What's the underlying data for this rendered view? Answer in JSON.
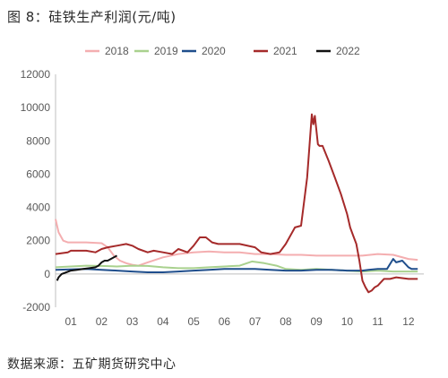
{
  "title": "图 8：硅铁生产利润(元/吨)",
  "source": "数据来源：五矿期货研究中心",
  "chart_data": {
    "type": "line",
    "title": "图 8：硅铁生产利润(元/吨)",
    "ylim": [
      -2000,
      12000
    ],
    "yticks": [
      -2000,
      0,
      2000,
      4000,
      6000,
      8000,
      10000,
      12000
    ],
    "ytick_labels": [
      "-2000",
      "0",
      "2000",
      "4000",
      "6000",
      "8000",
      "10000",
      "12000"
    ],
    "xlim": [
      0.5,
      12.5
    ],
    "xticks": [
      1,
      2,
      3,
      4,
      5,
      6,
      7,
      8,
      9,
      10,
      11,
      12
    ],
    "xtick_labels": [
      "01",
      "02",
      "03",
      "04",
      "05",
      "06",
      "07",
      "08",
      "09",
      "10",
      "11",
      "12"
    ],
    "legend_position": "top",
    "grid": false,
    "series": [
      {
        "name": "2018",
        "color": "#f4aeb0",
        "x": [
          0.5,
          0.6,
          0.75,
          0.9,
          1.5,
          2.0,
          2.2,
          2.4,
          2.6,
          2.8,
          3.0,
          3.2,
          3.5,
          4.0,
          4.5,
          5.0,
          5.5,
          6.0,
          6.5,
          7.0,
          7.5,
          8.0,
          8.5,
          9.0,
          9.5,
          10.0,
          10.5,
          11.0,
          11.5,
          12.0,
          12.3
        ],
        "y": [
          3300,
          2500,
          2000,
          1900,
          1900,
          1850,
          1600,
          1100,
          800,
          650,
          550,
          500,
          700,
          1000,
          1200,
          1300,
          1350,
          1300,
          1300,
          1200,
          1200,
          1150,
          1150,
          1100,
          1100,
          1100,
          1100,
          1200,
          1150,
          900,
          850
        ]
      },
      {
        "name": "2019",
        "color": "#a9d18e",
        "x": [
          0.5,
          1.0,
          1.5,
          2.0,
          2.5,
          3.0,
          3.5,
          4.0,
          4.5,
          5.0,
          5.5,
          6.0,
          6.5,
          6.9,
          7.3,
          7.7,
          8.0,
          8.5,
          9.0,
          9.5,
          10.0,
          10.5,
          11.0,
          11.5,
          12.0,
          12.3
        ],
        "y": [
          400,
          450,
          500,
          480,
          450,
          500,
          480,
          400,
          350,
          350,
          400,
          450,
          500,
          750,
          650,
          500,
          300,
          250,
          300,
          250,
          200,
          150,
          200,
          150,
          150,
          150
        ]
      },
      {
        "name": "2020",
        "color": "#1f4e8c",
        "x": [
          0.5,
          1.0,
          1.5,
          2.0,
          2.5,
          3.0,
          3.5,
          4.0,
          4.5,
          5.0,
          5.5,
          6.0,
          6.5,
          7.0,
          7.5,
          8.0,
          8.5,
          9.0,
          9.5,
          10.0,
          10.5,
          10.7,
          11.0,
          11.3,
          11.5,
          11.6,
          11.8,
          12.0,
          12.1,
          12.3
        ],
        "y": [
          250,
          280,
          300,
          250,
          200,
          150,
          100,
          100,
          150,
          200,
          250,
          300,
          300,
          300,
          250,
          200,
          200,
          250,
          250,
          200,
          200,
          250,
          300,
          300,
          900,
          700,
          800,
          400,
          300,
          300
        ]
      },
      {
        "name": "2021",
        "color": "#a52a2a",
        "x": [
          0.5,
          0.9,
          1.0,
          1.5,
          1.8,
          2.0,
          2.2,
          2.5,
          2.8,
          3.0,
          3.2,
          3.5,
          3.7,
          4.0,
          4.3,
          4.5,
          4.8,
          5.0,
          5.2,
          5.4,
          5.6,
          5.8,
          6.0,
          6.5,
          7.0,
          7.2,
          7.5,
          7.8,
          8.0,
          8.3,
          8.5,
          8.7,
          8.85,
          8.9,
          8.95,
          9.05,
          9.1,
          9.2,
          9.4,
          9.6,
          9.8,
          10.0,
          10.1,
          10.2,
          10.3,
          10.4,
          10.5,
          10.6,
          10.7,
          10.8,
          10.9,
          11.0,
          11.2,
          11.4,
          11.6,
          12.0,
          12.3
        ],
        "y": [
          1200,
          1300,
          1400,
          1400,
          1300,
          1500,
          1600,
          1700,
          1800,
          1700,
          1500,
          1300,
          1400,
          1300,
          1200,
          1500,
          1300,
          1700,
          2200,
          2200,
          1900,
          1800,
          1800,
          1800,
          1600,
          1300,
          1200,
          1300,
          1800,
          2800,
          2900,
          5800,
          9600,
          9000,
          9500,
          7800,
          7700,
          7700,
          6800,
          5800,
          4800,
          3600,
          2800,
          2300,
          1800,
          800,
          -400,
          -800,
          -1100,
          -1000,
          -800,
          -700,
          -300,
          -300,
          -200,
          -300,
          -300
        ]
      },
      {
        "name": "2022",
        "color": "#111111",
        "x": [
          0.55,
          0.6,
          0.7,
          0.85,
          1.0,
          1.2,
          1.4,
          1.6,
          1.8,
          1.9,
          2.0,
          2.1,
          2.2,
          2.3,
          2.4,
          2.5
        ],
        "y": [
          -400,
          -200,
          0,
          100,
          200,
          250,
          300,
          350,
          400,
          500,
          700,
          800,
          800,
          900,
          1000,
          1100
        ]
      }
    ]
  }
}
